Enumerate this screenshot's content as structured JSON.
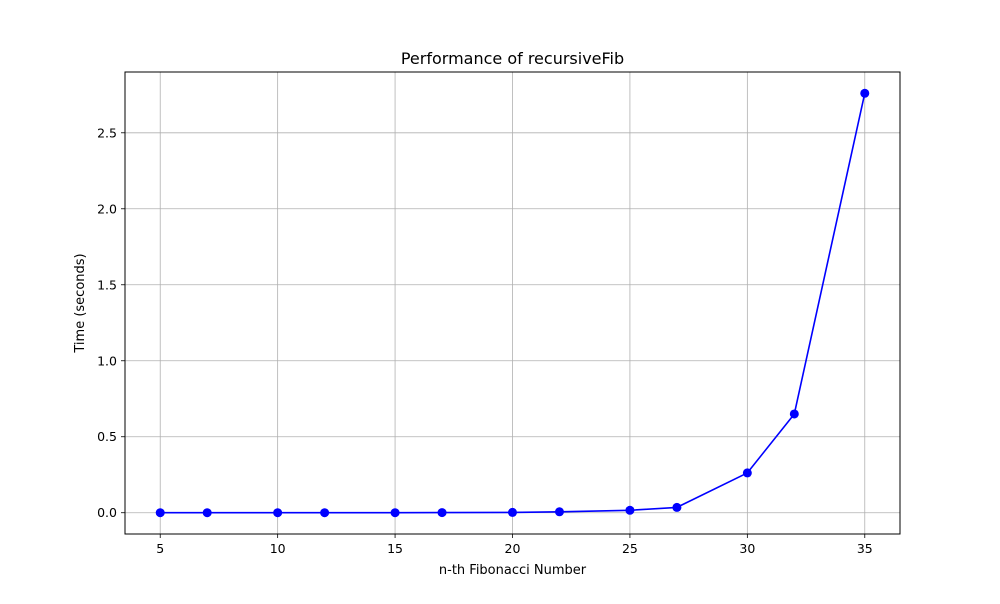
{
  "chart_data": {
    "type": "line",
    "title": "Performance of recursiveFib",
    "xlabel": "n-th Fibonacci Number",
    "ylabel": "Time (seconds)",
    "xlim": [
      3.5,
      36.5
    ],
    "ylim": [
      -0.14,
      2.9
    ],
    "xticks": [
      5,
      10,
      15,
      20,
      25,
      30,
      35
    ],
    "xtick_labels": [
      "5",
      "10",
      "15",
      "20",
      "25",
      "30",
      "35"
    ],
    "yticks": [
      0.0,
      0.5,
      1.0,
      1.5,
      2.0,
      2.5
    ],
    "ytick_labels": [
      "0.0",
      "0.5",
      "1.0",
      "1.5",
      "2.0",
      "2.5"
    ],
    "grid": true,
    "legend": false,
    "series": [
      {
        "color": "#0000ff",
        "marker": "circle",
        "x": [
          5,
          7,
          10,
          12,
          15,
          17,
          20,
          22,
          25,
          27,
          30,
          32,
          35
        ],
        "y": [
          0.0,
          0.0,
          0.0,
          0.0,
          0.0,
          0.001,
          0.002,
          0.006,
          0.016,
          0.035,
          0.262,
          0.65,
          2.76
        ]
      }
    ]
  }
}
